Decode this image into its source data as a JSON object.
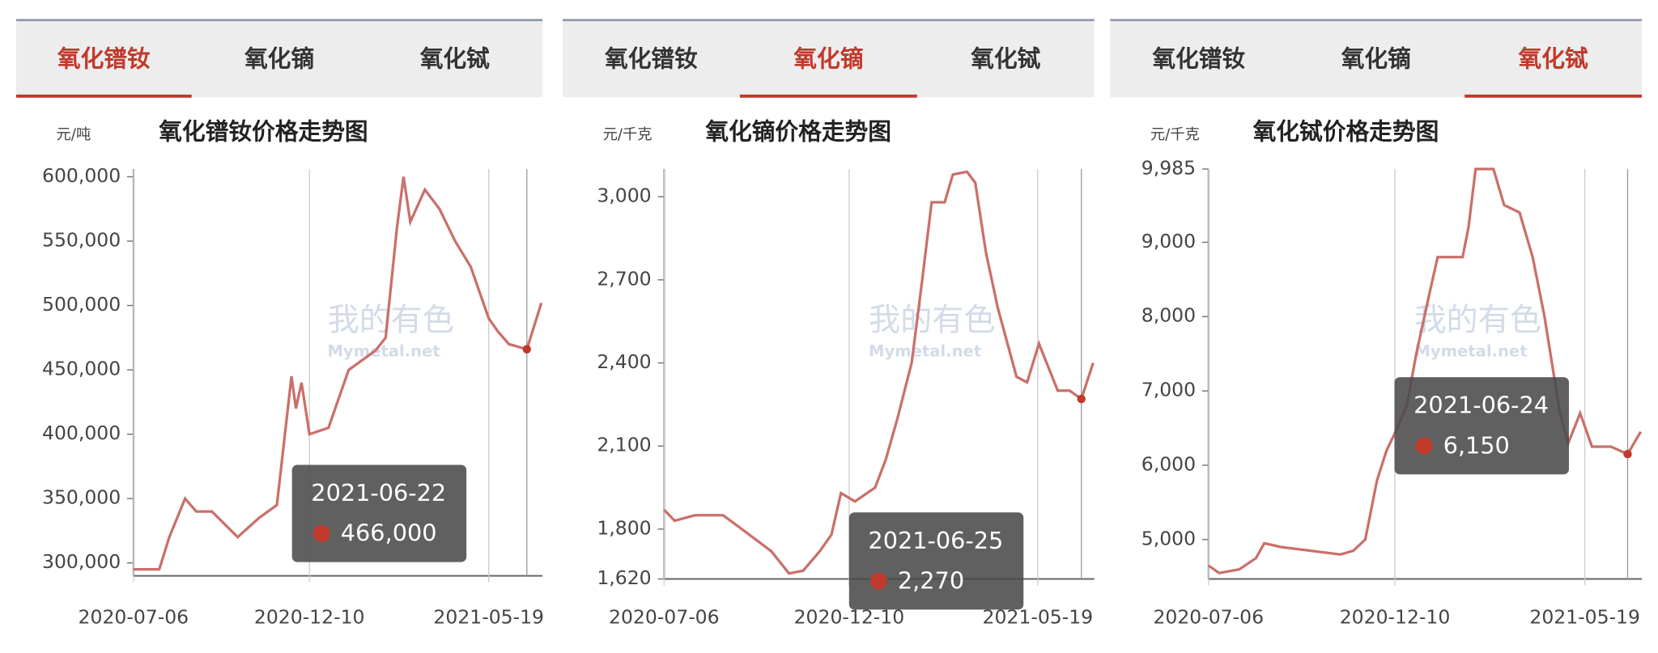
{
  "panels": [
    {
      "tabs": [
        "氧化镨钕",
        "氧化镝",
        "氧化铽"
      ],
      "active": 0
    },
    {
      "tabs": [
        "氧化镨钕",
        "氧化镝",
        "氧化铽"
      ],
      "active": 1
    },
    {
      "tabs": [
        "氧化镨钕",
        "氧化镝",
        "氧化铽"
      ],
      "active": 2
    }
  ],
  "watermark": {
    "cn": "我的有色",
    "en": "Mymetal.net"
  },
  "chart_data": [
    {
      "type": "line",
      "title": "氧化镨钕价格走势图",
      "y_unit": "元/吨",
      "color": "#c9706a",
      "xlim": [
        "2020-07-06",
        "2021-07-06"
      ],
      "xticks": [
        "2020-07-06",
        "2020-12-10",
        "2021-05-19"
      ],
      "ylim": [
        290000,
        606000
      ],
      "yticks": [
        {
          "value": 300000,
          "label": "300,000"
        },
        {
          "value": 350000,
          "label": "350,000"
        },
        {
          "value": 400000,
          "label": "400,000"
        },
        {
          "value": 450000,
          "label": "450,000"
        },
        {
          "value": 500000,
          "label": "500,000"
        },
        {
          "value": 550000,
          "label": "550,000"
        },
        {
          "value": 600000,
          "label": "600,000"
        }
      ],
      "x": [
        "2020-07-06",
        "2020-07-29",
        "2020-08-07",
        "2020-08-21",
        "2020-08-31",
        "2020-09-14",
        "2020-10-07",
        "2020-10-26",
        "2020-11-11",
        "2020-11-24",
        "2020-11-28",
        "2020-12-03",
        "2020-12-10",
        "2020-12-27",
        "2021-01-14",
        "2021-02-07",
        "2021-02-16",
        "2021-02-26",
        "2021-03-04",
        "2021-03-10",
        "2021-03-23",
        "2021-04-05",
        "2021-04-19",
        "2021-05-03",
        "2021-05-19",
        "2021-05-27",
        "2021-06-06",
        "2021-06-22",
        "2021-07-05"
      ],
      "values": [
        295000,
        295000,
        320000,
        350000,
        340000,
        340000,
        320000,
        335000,
        345000,
        445000,
        420000,
        440000,
        400000,
        405000,
        450000,
        465000,
        475000,
        560000,
        600000,
        565000,
        590000,
        575000,
        550000,
        530000,
        490000,
        480000,
        470000,
        466000,
        502000
      ],
      "tooltip": {
        "x": "2021-06-22",
        "value": 466000,
        "label": "466,000"
      }
    },
    {
      "type": "line",
      "title": "氧化镝价格走势图",
      "y_unit": "元/千克",
      "color": "#c9706a",
      "xlim": [
        "2020-07-06",
        "2021-07-06"
      ],
      "xticks": [
        "2020-07-06",
        "2020-12-10",
        "2021-05-19"
      ],
      "ylim": [
        1620,
        3100
      ],
      "yticks": [
        {
          "value": 1620,
          "label": "1,620"
        },
        {
          "value": 1800,
          "label": "1,800"
        },
        {
          "value": 2100,
          "label": "2,100"
        },
        {
          "value": 2400,
          "label": "2,400"
        },
        {
          "value": 2700,
          "label": "2,700"
        },
        {
          "value": 3000,
          "label": "3,000"
        }
      ],
      "x": [
        "2020-07-06",
        "2020-07-15",
        "2020-08-01",
        "2020-08-25",
        "2020-09-10",
        "2020-10-05",
        "2020-10-20",
        "2020-11-01",
        "2020-11-15",
        "2020-11-25",
        "2020-12-03",
        "2020-12-15",
        "2021-01-01",
        "2021-01-10",
        "2021-01-20",
        "2021-02-01",
        "2021-02-10",
        "2021-02-18",
        "2021-03-01",
        "2021-03-08",
        "2021-03-20",
        "2021-03-27",
        "2021-04-05",
        "2021-04-15",
        "2021-05-01",
        "2021-05-10",
        "2021-05-20",
        "2021-06-05",
        "2021-06-15",
        "2021-06-25",
        "2021-07-05"
      ],
      "values": [
        1870,
        1830,
        1850,
        1850,
        1800,
        1720,
        1640,
        1650,
        1720,
        1780,
        1930,
        1900,
        1950,
        2050,
        2200,
        2400,
        2700,
        2980,
        2980,
        3080,
        3090,
        3050,
        2800,
        2600,
        2350,
        2330,
        2470,
        2300,
        2300,
        2270,
        2400
      ],
      "tooltip": {
        "x": "2021-06-25",
        "value": 2270,
        "label": "2,270"
      }
    },
    {
      "type": "line",
      "title": "氧化铽价格走势图",
      "y_unit": "元/千克",
      "color": "#c9706a",
      "xlim": [
        "2020-07-06",
        "2021-07-06"
      ],
      "xticks": [
        "2020-07-06",
        "2020-12-10",
        "2021-05-19"
      ],
      "ylim": [
        4470,
        9985
      ],
      "yticks": [
        {
          "value": 5000,
          "label": "5,000"
        },
        {
          "value": 6000,
          "label": "6,000"
        },
        {
          "value": 7000,
          "label": "7,000"
        },
        {
          "value": 8000,
          "label": "8,000"
        },
        {
          "value": 9000,
          "label": "9,000"
        },
        {
          "value": 9985,
          "label": "9,985"
        }
      ],
      "x": [
        "2020-07-06",
        "2020-07-15",
        "2020-08-01",
        "2020-08-15",
        "2020-08-22",
        "2020-09-05",
        "2020-09-30",
        "2020-10-25",
        "2020-11-05",
        "2020-11-15",
        "2020-11-25",
        "2020-12-03",
        "2020-12-12",
        "2020-12-20",
        "2020-12-28",
        "2021-01-08",
        "2021-01-15",
        "2021-02-05",
        "2021-02-10",
        "2021-02-16",
        "2021-03-03",
        "2021-03-12",
        "2021-03-25",
        "2021-04-05",
        "2021-04-15",
        "2021-04-28",
        "2021-05-05",
        "2021-05-15",
        "2021-05-25",
        "2021-06-10",
        "2021-06-24",
        "2021-07-05"
      ],
      "values": [
        4650,
        4550,
        4600,
        4750,
        4950,
        4900,
        4850,
        4800,
        4850,
        5000,
        5800,
        6200,
        6500,
        6800,
        7500,
        8300,
        8800,
        8800,
        9200,
        9985,
        9985,
        9500,
        9400,
        8800,
        8000,
        6700,
        6300,
        6700,
        6250,
        6250,
        6150,
        6450
      ],
      "tooltip": {
        "x": "2021-06-24",
        "value": 6150,
        "label": "6,150"
      }
    }
  ]
}
